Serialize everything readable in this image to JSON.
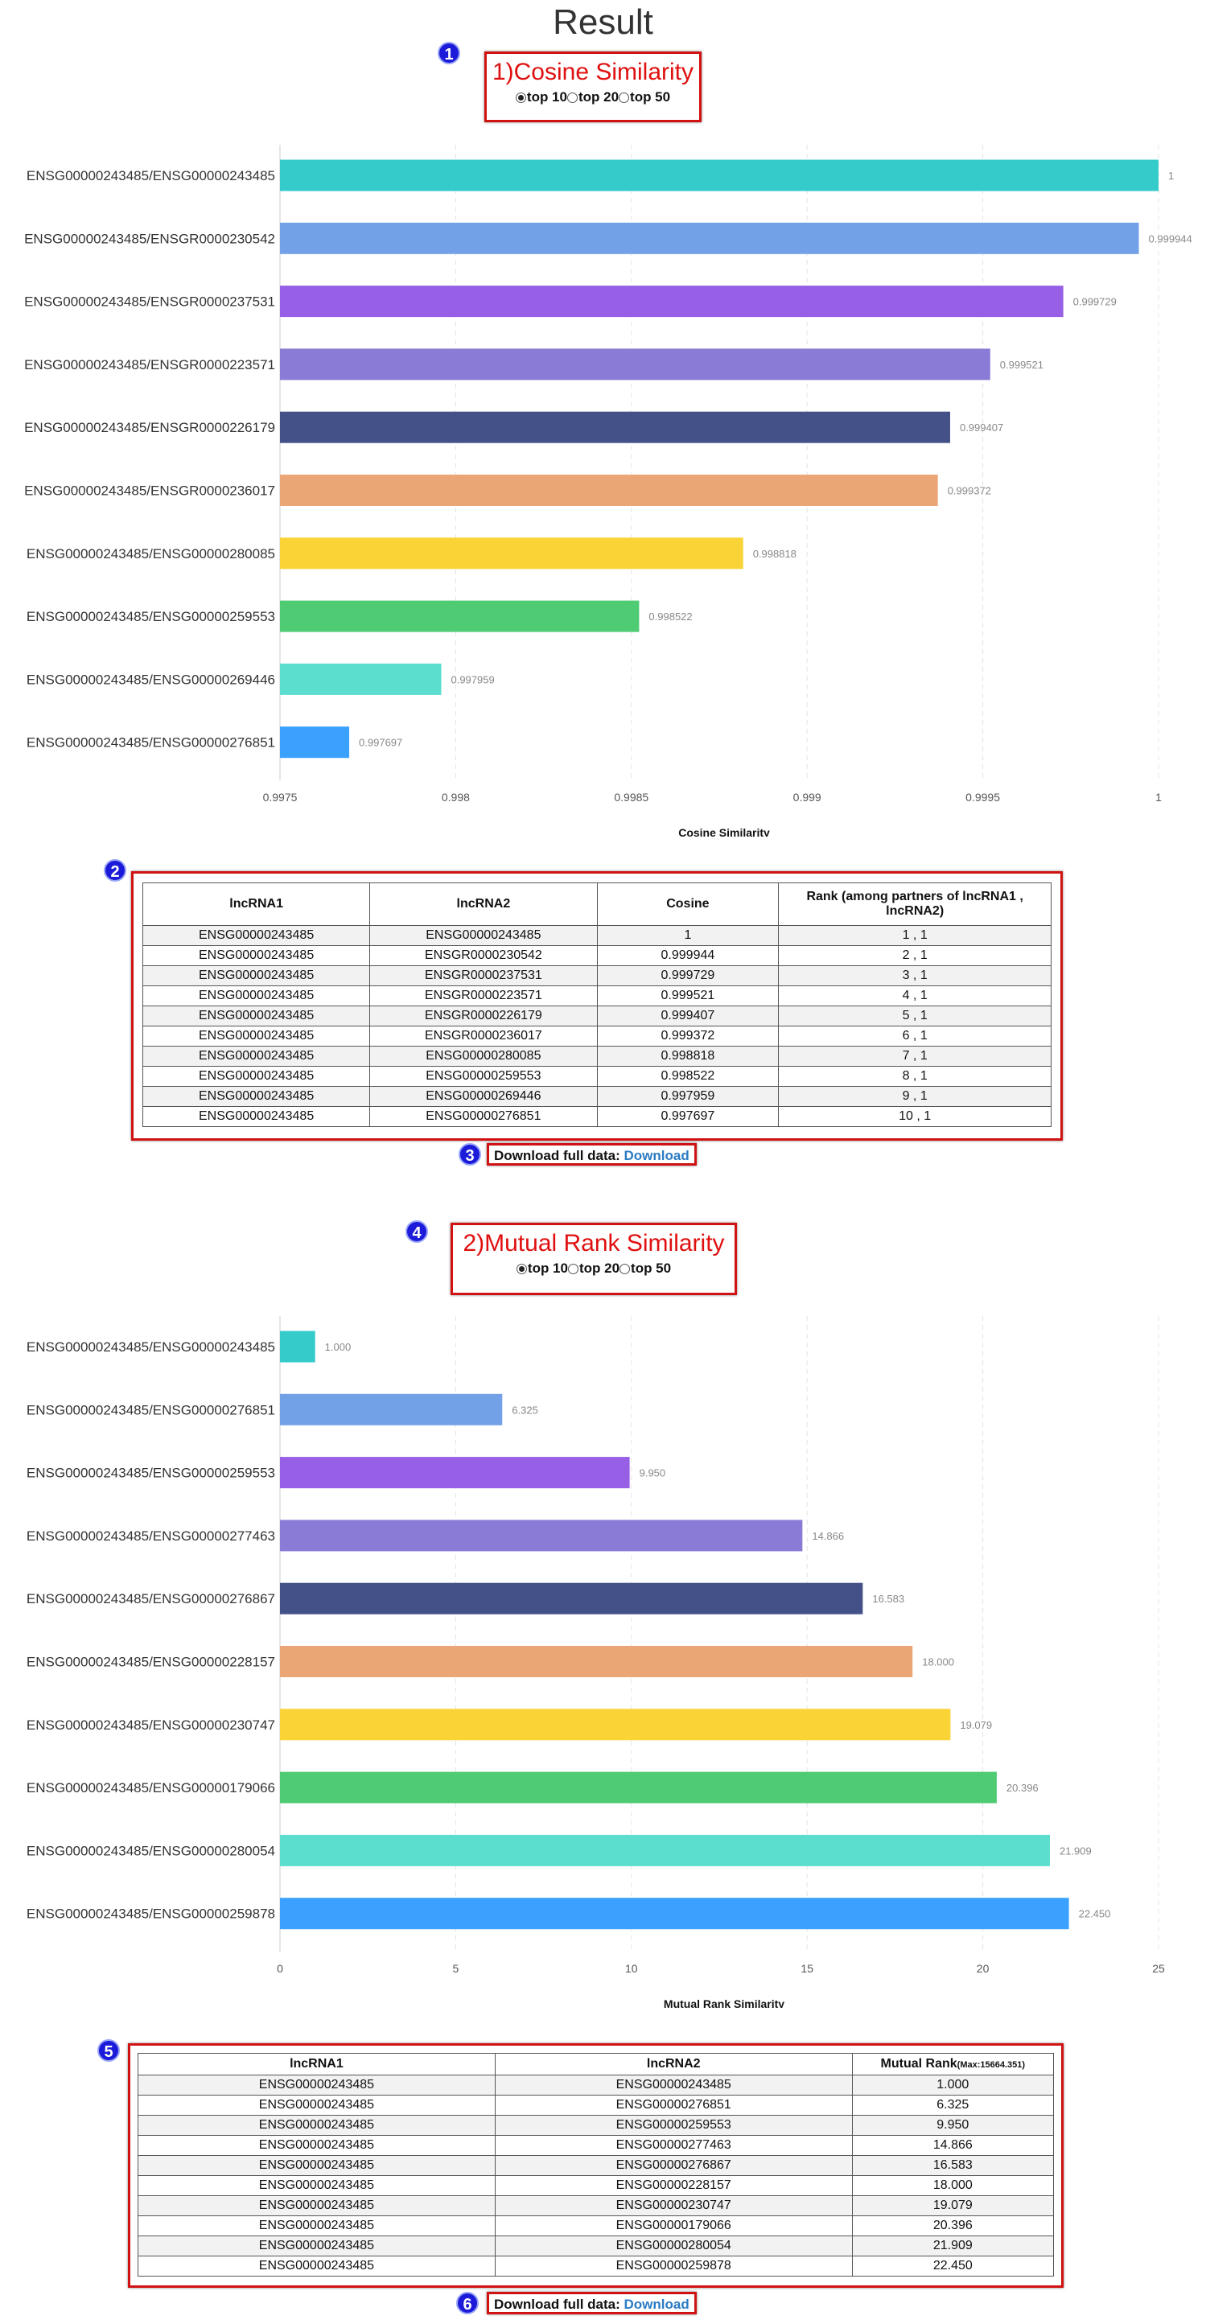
{
  "page_title": "Result",
  "markers": [
    "1",
    "2",
    "3",
    "4",
    "5",
    "6"
  ],
  "section1": {
    "title": "1)Cosine Similarity",
    "radios": [
      {
        "label": "top 10",
        "checked": true
      },
      {
        "label": "top 20",
        "checked": false
      },
      {
        "label": "top 50",
        "checked": false
      }
    ]
  },
  "section2": {
    "title": "2)Mutual Rank Similarity",
    "radios": [
      {
        "label": "top 10",
        "checked": true
      },
      {
        "label": "top 20",
        "checked": false
      },
      {
        "label": "top 50",
        "checked": false
      }
    ]
  },
  "download": {
    "prefix": "Download full data:",
    "link": "Download"
  },
  "colors": [
    "#36cbcb",
    "#73a1e8",
    "#975fe5",
    "#8a7bd6",
    "#435188",
    "#eba675",
    "#fad337",
    "#4ecb73",
    "#5bdece",
    "#3aa1ff"
  ],
  "chart_data": [
    {
      "type": "bar",
      "orientation": "horizontal",
      "xlabel": "Cosine Similarity",
      "ylabel": "",
      "xlim": [
        0.9975,
        1
      ],
      "xticks": [
        "0.9975",
        "0.998",
        "0.9985",
        "0.999",
        "0.9995",
        "1"
      ],
      "xtick_values": [
        0.9975,
        0.998,
        0.9985,
        0.999,
        0.9995,
        1
      ],
      "grid": true,
      "categories": [
        "ENSG00000243485/ENSG00000243485",
        "ENSG00000243485/ENSGR0000230542",
        "ENSG00000243485/ENSGR0000237531",
        "ENSG00000243485/ENSGR0000223571",
        "ENSG00000243485/ENSGR0000226179",
        "ENSG00000243485/ENSGR0000236017",
        "ENSG00000243485/ENSG00000280085",
        "ENSG00000243485/ENSG00000259553",
        "ENSG00000243485/ENSG00000269446",
        "ENSG00000243485/ENSG00000276851"
      ],
      "values": [
        1,
        0.999944,
        0.999729,
        0.999521,
        0.999407,
        0.999372,
        0.998818,
        0.998522,
        0.997959,
        0.997697
      ],
      "value_labels": [
        "1",
        "0.999944",
        "0.999729",
        "0.999521",
        "0.999407",
        "0.999372",
        "0.998818",
        "0.998522",
        "0.997959",
        "0.997697"
      ]
    },
    {
      "type": "bar",
      "orientation": "horizontal",
      "xlabel": "Mutual Rank Similarity",
      "ylabel": "",
      "xlim": [
        0,
        25
      ],
      "xticks": [
        "0",
        "5",
        "10",
        "15",
        "20",
        "25"
      ],
      "xtick_values": [
        0,
        5,
        10,
        15,
        20,
        25
      ],
      "grid": true,
      "categories": [
        "ENSG00000243485/ENSG00000243485",
        "ENSG00000243485/ENSG00000276851",
        "ENSG00000243485/ENSG00000259553",
        "ENSG00000243485/ENSG00000277463",
        "ENSG00000243485/ENSG00000276867",
        "ENSG00000243485/ENSG00000228157",
        "ENSG00000243485/ENSG00000230747",
        "ENSG00000243485/ENSG00000179066",
        "ENSG00000243485/ENSG00000280054",
        "ENSG00000243485/ENSG00000259878"
      ],
      "values": [
        1.0,
        6.325,
        9.95,
        14.866,
        16.583,
        18.0,
        19.079,
        20.396,
        21.909,
        22.45
      ],
      "value_labels": [
        "1.000",
        "6.325",
        "9.950",
        "14.866",
        "16.583",
        "18.000",
        "19.079",
        "20.396",
        "21.909",
        "22.450"
      ]
    }
  ],
  "table1": {
    "headers": [
      "lncRNA1",
      "lncRNA2",
      "Cosine",
      "Rank (among partners of lncRNA1 , lncRNA2)"
    ],
    "rows": [
      [
        "ENSG00000243485",
        "ENSG00000243485",
        "1",
        "1 , 1"
      ],
      [
        "ENSG00000243485",
        "ENSGR0000230542",
        "0.999944",
        "2 , 1"
      ],
      [
        "ENSG00000243485",
        "ENSGR0000237531",
        "0.999729",
        "3 , 1"
      ],
      [
        "ENSG00000243485",
        "ENSGR0000223571",
        "0.999521",
        "4 , 1"
      ],
      [
        "ENSG00000243485",
        "ENSGR0000226179",
        "0.999407",
        "5 , 1"
      ],
      [
        "ENSG00000243485",
        "ENSGR0000236017",
        "0.999372",
        "6 , 1"
      ],
      [
        "ENSG00000243485",
        "ENSG00000280085",
        "0.998818",
        "7 , 1"
      ],
      [
        "ENSG00000243485",
        "ENSG00000259553",
        "0.998522",
        "8 , 1"
      ],
      [
        "ENSG00000243485",
        "ENSG00000269446",
        "0.997959",
        "9 , 1"
      ],
      [
        "ENSG00000243485",
        "ENSG00000276851",
        "0.997697",
        "10 , 1"
      ]
    ]
  },
  "table2": {
    "headers": [
      "lncRNA1",
      "lncRNA2",
      "Mutual Rank"
    ],
    "header_note": "(Max:15664.351)",
    "rows": [
      [
        "ENSG00000243485",
        "ENSG00000243485",
        "1.000"
      ],
      [
        "ENSG00000243485",
        "ENSG00000276851",
        "6.325"
      ],
      [
        "ENSG00000243485",
        "ENSG00000259553",
        "9.950"
      ],
      [
        "ENSG00000243485",
        "ENSG00000277463",
        "14.866"
      ],
      [
        "ENSG00000243485",
        "ENSG00000276867",
        "16.583"
      ],
      [
        "ENSG00000243485",
        "ENSG00000228157",
        "18.000"
      ],
      [
        "ENSG00000243485",
        "ENSG00000230747",
        "19.079"
      ],
      [
        "ENSG00000243485",
        "ENSG00000179066",
        "20.396"
      ],
      [
        "ENSG00000243485",
        "ENSG00000280054",
        "21.909"
      ],
      [
        "ENSG00000243485",
        "ENSG00000259878",
        "22.450"
      ]
    ]
  }
}
